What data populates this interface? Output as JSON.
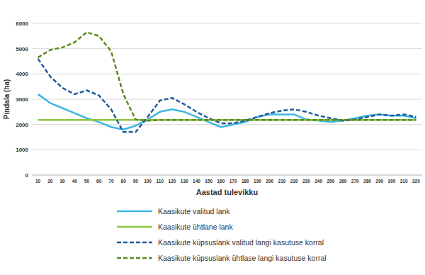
{
  "chart_data": {
    "type": "line",
    "x_label": "Aastad tulevikku",
    "y_label": "Pindala (ha)",
    "categories": [
      "10",
      "20",
      "30",
      "40",
      "50",
      "60",
      "70",
      "80",
      "90",
      "100",
      "110",
      "120",
      "130",
      "140",
      "150",
      "160",
      "170",
      "180",
      "190",
      "200",
      "210",
      "220",
      "230",
      "240",
      "250",
      "260",
      "270",
      "280",
      "290",
      "300",
      "310",
      "320"
    ],
    "series": [
      {
        "name": "Kaasikute valitud lank",
        "color": "#3db7e4",
        "line_style": "solid",
        "values": [
          3200,
          2850,
          2650,
          2450,
          2250,
          2100,
          1900,
          1800,
          1950,
          2200,
          2500,
          2600,
          2500,
          2300,
          2100,
          1900,
          2000,
          2100,
          2300,
          2400,
          2400,
          2400,
          2200,
          2150,
          2100,
          2150,
          2250,
          2350,
          2400,
          2350,
          2350,
          2250
        ]
      },
      {
        "name": "Kaasikute ühtlane lank",
        "color": "#8dc63f",
        "line_style": "solid",
        "values": [
          2180,
          2180,
          2180,
          2180,
          2180,
          2180,
          2180,
          2180,
          2180,
          2180,
          2180,
          2180,
          2180,
          2180,
          2180,
          2180,
          2180,
          2180,
          2180,
          2180,
          2180,
          2180,
          2180,
          2180,
          2180,
          2180,
          2180,
          2180,
          2180,
          2180,
          2180,
          2180
        ]
      },
      {
        "name": "Kaasikute küpsuslank valitud langi kasutuse korral",
        "color": "#1f5c99",
        "line_style": "dashed",
        "values": [
          4600,
          3900,
          3450,
          3200,
          3350,
          3150,
          2600,
          1700,
          1700,
          2300,
          2950,
          3050,
          2800,
          2500,
          2250,
          2050,
          2050,
          2150,
          2300,
          2450,
          2550,
          2600,
          2500,
          2350,
          2250,
          2150,
          2200,
          2300,
          2400,
          2350,
          2400,
          2300
        ]
      },
      {
        "name": "Kaasikute küpsuslank ühtlase langi kasutuse korral",
        "color": "#5b8a1f",
        "line_style": "dashed",
        "values": [
          4650,
          4950,
          5050,
          5250,
          5650,
          5500,
          4900,
          3200,
          2200,
          2150,
          2180,
          2180,
          2180,
          2180,
          2180,
          2180,
          2180,
          2180,
          2180,
          2180,
          2180,
          2180,
          2180,
          2180,
          2180,
          2180,
          2180,
          2180,
          2180,
          2180,
          2180,
          2180
        ]
      }
    ],
    "ylim": [
      0,
      6000
    ],
    "yticks": [
      0,
      1000,
      2000,
      3000,
      4000,
      5000,
      6000
    ],
    "grid": true,
    "legend": "bottom"
  }
}
